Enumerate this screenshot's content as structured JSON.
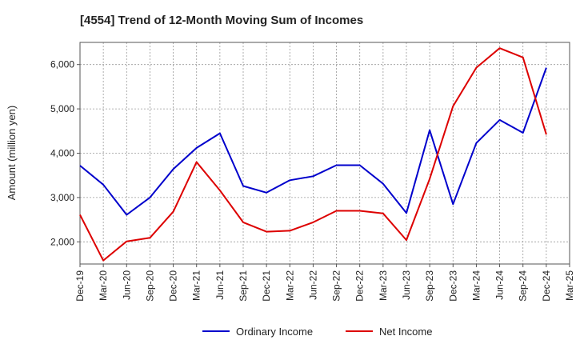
{
  "chart_data": {
    "type": "line",
    "title": "[4554]  Trend of 12-Month Moving Sum of Incomes",
    "xlabel": "",
    "ylabel": "Amount (million yen)",
    "categories": [
      "Dec-19",
      "Mar-20",
      "Jun-20",
      "Sep-20",
      "Dec-20",
      "Mar-21",
      "Jun-21",
      "Sep-21",
      "Dec-21",
      "Mar-22",
      "Jun-22",
      "Sep-22",
      "Dec-22",
      "Mar-23",
      "Jun-23",
      "Sep-23",
      "Dec-23",
      "Mar-24",
      "Jun-24",
      "Sep-24",
      "Dec-24",
      "Mar-25"
    ],
    "ylim": [
      1500,
      6500
    ],
    "yticks": [
      2000,
      3000,
      4000,
      5000,
      6000
    ],
    "ytick_labels": [
      "2,000",
      "3,000",
      "4,000",
      "5,000",
      "6,000"
    ],
    "grid": true,
    "legend_position": "bottom",
    "series": [
      {
        "name": "Ordinary Income",
        "color": "#0000cc",
        "values": [
          3720,
          3290,
          2610,
          3000,
          3640,
          4120,
          4450,
          3260,
          3110,
          3390,
          3480,
          3730,
          3730,
          3310,
          2650,
          4520,
          2850,
          4230,
          4750,
          4460,
          5930,
          null
        ]
      },
      {
        "name": "Net Income",
        "color": "#dd0000",
        "values": [
          2610,
          1580,
          2010,
          2090,
          2680,
          3800,
          3160,
          2440,
          2230,
          2250,
          2440,
          2700,
          2700,
          2640,
          2040,
          3420,
          5060,
          5930,
          6370,
          6160,
          4420,
          null
        ]
      }
    ]
  }
}
